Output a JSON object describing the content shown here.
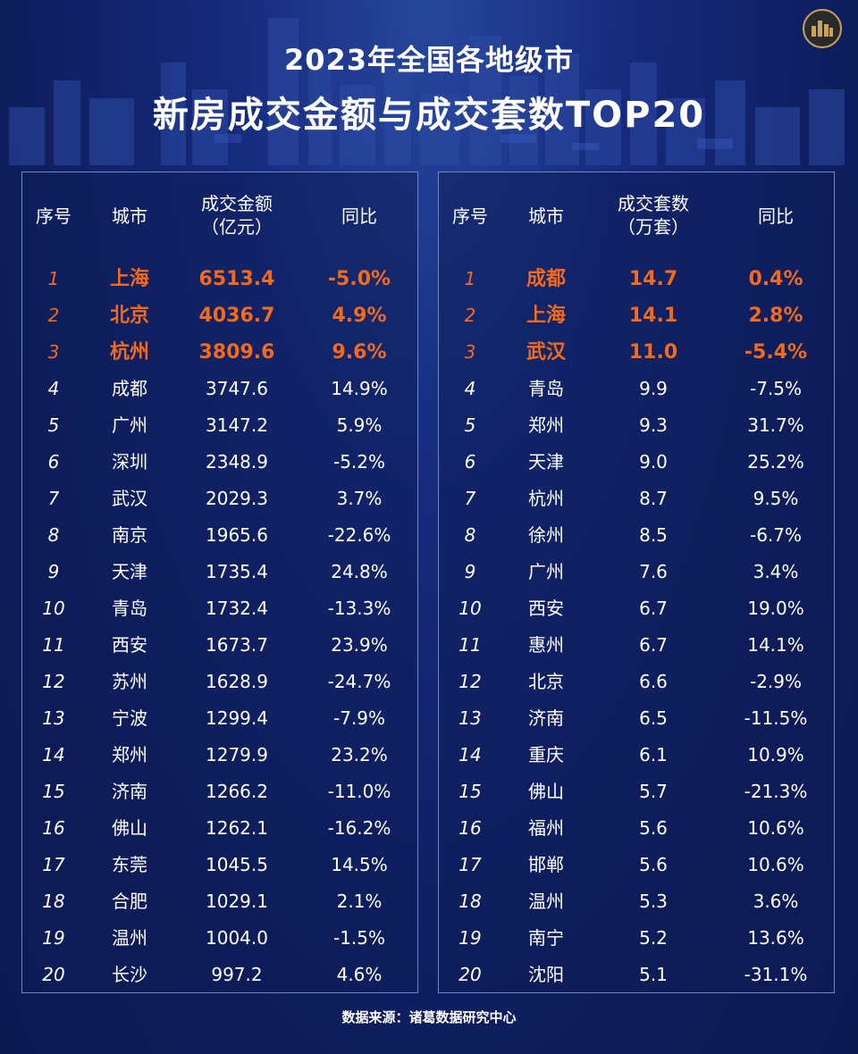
{
  "header": {
    "title_line1": "2023年全国各地级市",
    "title_line2": "新房成交金额与成交套数TOP20"
  },
  "colors": {
    "top3_highlight": "#f26b1d",
    "background": "#0f1f5c",
    "panel_border": "#6f86c8"
  },
  "icons": {
    "logo": "building-logo-icon"
  },
  "left_table": {
    "headers": {
      "rank": "序号",
      "city": "城市",
      "value_line1": "成交金额",
      "value_line2": "（亿元）",
      "yoy": "同比"
    },
    "rows": [
      {
        "rank": "1",
        "city": "上海",
        "value": "6513.4",
        "yoy": "-5.0%"
      },
      {
        "rank": "2",
        "city": "北京",
        "value": "4036.7",
        "yoy": "4.9%"
      },
      {
        "rank": "3",
        "city": "杭州",
        "value": "3809.6",
        "yoy": "9.6%"
      },
      {
        "rank": "4",
        "city": "成都",
        "value": "3747.6",
        "yoy": "14.9%"
      },
      {
        "rank": "5",
        "city": "广州",
        "value": "3147.2",
        "yoy": "5.9%"
      },
      {
        "rank": "6",
        "city": "深圳",
        "value": "2348.9",
        "yoy": "-5.2%"
      },
      {
        "rank": "7",
        "city": "武汉",
        "value": "2029.3",
        "yoy": "3.7%"
      },
      {
        "rank": "8",
        "city": "南京",
        "value": "1965.6",
        "yoy": "-22.6%"
      },
      {
        "rank": "9",
        "city": "天津",
        "value": "1735.4",
        "yoy": "24.8%"
      },
      {
        "rank": "10",
        "city": "青岛",
        "value": "1732.4",
        "yoy": "-13.3%"
      },
      {
        "rank": "11",
        "city": "西安",
        "value": "1673.7",
        "yoy": "23.9%"
      },
      {
        "rank": "12",
        "city": "苏州",
        "value": "1628.9",
        "yoy": "-24.7%"
      },
      {
        "rank": "13",
        "city": "宁波",
        "value": "1299.4",
        "yoy": "-7.9%"
      },
      {
        "rank": "14",
        "city": "郑州",
        "value": "1279.9",
        "yoy": "23.2%"
      },
      {
        "rank": "15",
        "city": "济南",
        "value": "1266.2",
        "yoy": "-11.0%"
      },
      {
        "rank": "16",
        "city": "佛山",
        "value": "1262.1",
        "yoy": "-16.2%"
      },
      {
        "rank": "17",
        "city": "东莞",
        "value": "1045.5",
        "yoy": "14.5%"
      },
      {
        "rank": "18",
        "city": "合肥",
        "value": "1029.1",
        "yoy": "2.1%"
      },
      {
        "rank": "19",
        "city": "温州",
        "value": "1004.0",
        "yoy": "-1.5%"
      },
      {
        "rank": "20",
        "city": "长沙",
        "value": "997.2",
        "yoy": "4.6%"
      }
    ]
  },
  "right_table": {
    "headers": {
      "rank": "序号",
      "city": "城市",
      "value_line1": "成交套数",
      "value_line2": "（万套）",
      "yoy": "同比"
    },
    "rows": [
      {
        "rank": "1",
        "city": "成都",
        "value": "14.7",
        "yoy": "0.4%"
      },
      {
        "rank": "2",
        "city": "上海",
        "value": "14.1",
        "yoy": "2.8%"
      },
      {
        "rank": "3",
        "city": "武汉",
        "value": "11.0",
        "yoy": "-5.4%"
      },
      {
        "rank": "4",
        "city": "青岛",
        "value": "9.9",
        "yoy": "-7.5%"
      },
      {
        "rank": "5",
        "city": "郑州",
        "value": "9.3",
        "yoy": "31.7%"
      },
      {
        "rank": "6",
        "city": "天津",
        "value": "9.0",
        "yoy": "25.2%"
      },
      {
        "rank": "7",
        "city": "杭州",
        "value": "8.7",
        "yoy": "9.5%"
      },
      {
        "rank": "8",
        "city": "徐州",
        "value": "8.5",
        "yoy": "-6.7%"
      },
      {
        "rank": "9",
        "city": "广州",
        "value": "7.6",
        "yoy": "3.4%"
      },
      {
        "rank": "10",
        "city": "西安",
        "value": "6.7",
        "yoy": "19.0%"
      },
      {
        "rank": "11",
        "city": "惠州",
        "value": "6.7",
        "yoy": "14.1%"
      },
      {
        "rank": "12",
        "city": "北京",
        "value": "6.6",
        "yoy": "-2.9%"
      },
      {
        "rank": "13",
        "city": "济南",
        "value": "6.5",
        "yoy": "-11.5%"
      },
      {
        "rank": "14",
        "city": "重庆",
        "value": "6.1",
        "yoy": "10.9%"
      },
      {
        "rank": "15",
        "city": "佛山",
        "value": "5.7",
        "yoy": "-21.3%"
      },
      {
        "rank": "16",
        "city": "福州",
        "value": "5.6",
        "yoy": "10.6%"
      },
      {
        "rank": "17",
        "city": "邯郸",
        "value": "5.6",
        "yoy": "10.6%"
      },
      {
        "rank": "18",
        "city": "温州",
        "value": "5.3",
        "yoy": "3.6%"
      },
      {
        "rank": "19",
        "city": "南宁",
        "value": "5.2",
        "yoy": "13.6%"
      },
      {
        "rank": "20",
        "city": "沈阳",
        "value": "5.1",
        "yoy": "-31.1%"
      }
    ]
  },
  "footer": {
    "source": "数据来源：诸葛数据研究中心"
  }
}
